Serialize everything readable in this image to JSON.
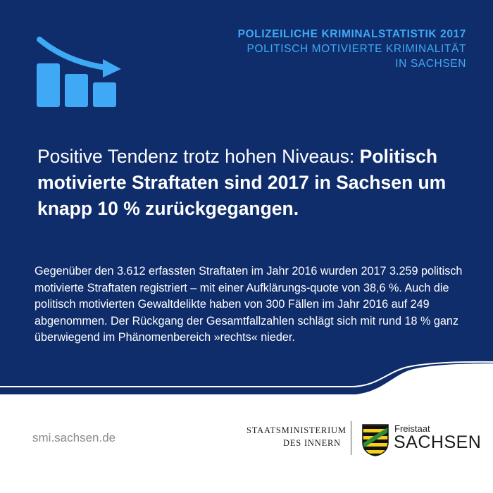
{
  "colors": {
    "navy": "#0f2d6b",
    "accent_blue": "#3fa9f5",
    "white": "#ffffff",
    "url_gray": "#8a8a8a"
  },
  "icons": {
    "trend": "downward-trend-bar-chart-icon",
    "crest": "saxony-coat-of-arms-icon"
  },
  "header": {
    "line1": "POLIZEILICHE KRIMINALSTATISTIK 2017",
    "line2": "POLITISCH MOTIVIERTE KRIMINALITÄT",
    "line3": "IN SACHSEN"
  },
  "headline": {
    "normal": "Positive Tendenz trotz hohen Niveaus: ",
    "bold": "Politisch motivierte Straftaten sind 2017 in Sachsen um knapp 10 % zurückgegangen."
  },
  "body": {
    "text": "Gegenüber den 3.612 erfassten Straftaten im Jahr 2016 wurden 2017 3.259 politisch motivierte Straftaten registriert – mit einer Aufklärungs-quote von 38,6 %. Auch die politisch motivierten Gewaltdelikte haben von 300 Fällen im Jahr 2016 auf 249 abgenommen. Der Rückgang der Gesamtfallzahlen schlägt sich mit rund 18 % ganz überwiegend im Phänomenbereich »rechts« nieder."
  },
  "footer": {
    "url": "smi.sachsen.de",
    "ministry_line1": "STAATSMINISTERIUM",
    "ministry_line2": "DES INNERN",
    "freistaat": "Freistaat",
    "sachsen": "SACHSEN"
  }
}
